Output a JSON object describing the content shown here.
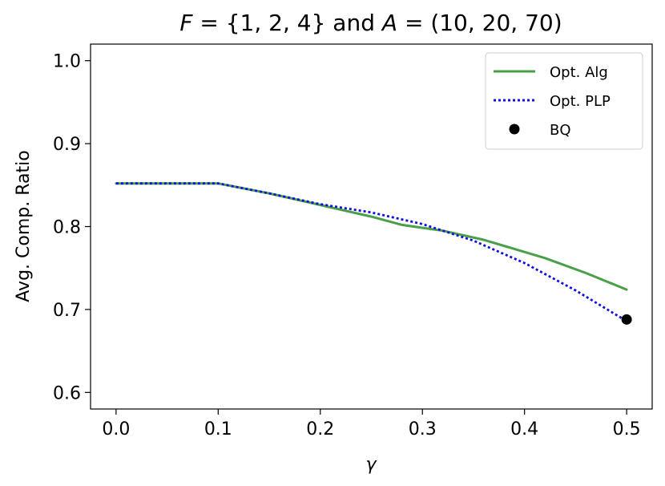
{
  "chart_data": {
    "type": "line",
    "title": "F = {1, 2, 4} and A = (10, 20, 70)",
    "title_parts": {
      "f_var": "F",
      "eq": " = ",
      "f_set": "{1, 2, 4}",
      "and": " and ",
      "a_var": "A",
      "a_tuple": "(10, 20, 70)"
    },
    "xlabel": "γ",
    "ylabel": "Avg. Comp. Ratio",
    "xlim": [
      -0.025,
      0.525
    ],
    "ylim": [
      0.58,
      1.02
    ],
    "xticks": [
      0.0,
      0.1,
      0.2,
      0.3,
      0.4,
      0.5
    ],
    "xtick_labels": [
      "0.0",
      "0.1",
      "0.2",
      "0.3",
      "0.4",
      "0.5"
    ],
    "yticks": [
      0.6,
      0.7,
      0.8,
      0.9,
      1.0
    ],
    "ytick_labels": [
      "0.6",
      "0.7",
      "0.8",
      "0.9",
      "1.0"
    ],
    "grid": false,
    "legend_position": "top-right",
    "series": [
      {
        "name": "Opt. Alg",
        "style": "solid",
        "color": "#4aa04a",
        "x": [
          0.0,
          0.1,
          0.15,
          0.2,
          0.25,
          0.28,
          0.32,
          0.36,
          0.42,
          0.46,
          0.5
        ],
        "y": [
          0.852,
          0.852,
          0.84,
          0.826,
          0.812,
          0.802,
          0.795,
          0.784,
          0.762,
          0.744,
          0.724
        ]
      },
      {
        "name": "Opt. PLP",
        "style": "dotted",
        "color": "#1010e0",
        "x": [
          0.0,
          0.1,
          0.15,
          0.2,
          0.25,
          0.3,
          0.35,
          0.4,
          0.45,
          0.5
        ],
        "y": [
          0.852,
          0.852,
          0.84,
          0.827,
          0.817,
          0.803,
          0.783,
          0.756,
          0.723,
          0.686
        ]
      },
      {
        "name": "BQ",
        "style": "marker",
        "color": "#000000",
        "x": [
          0.5
        ],
        "y": [
          0.688
        ]
      }
    ]
  }
}
